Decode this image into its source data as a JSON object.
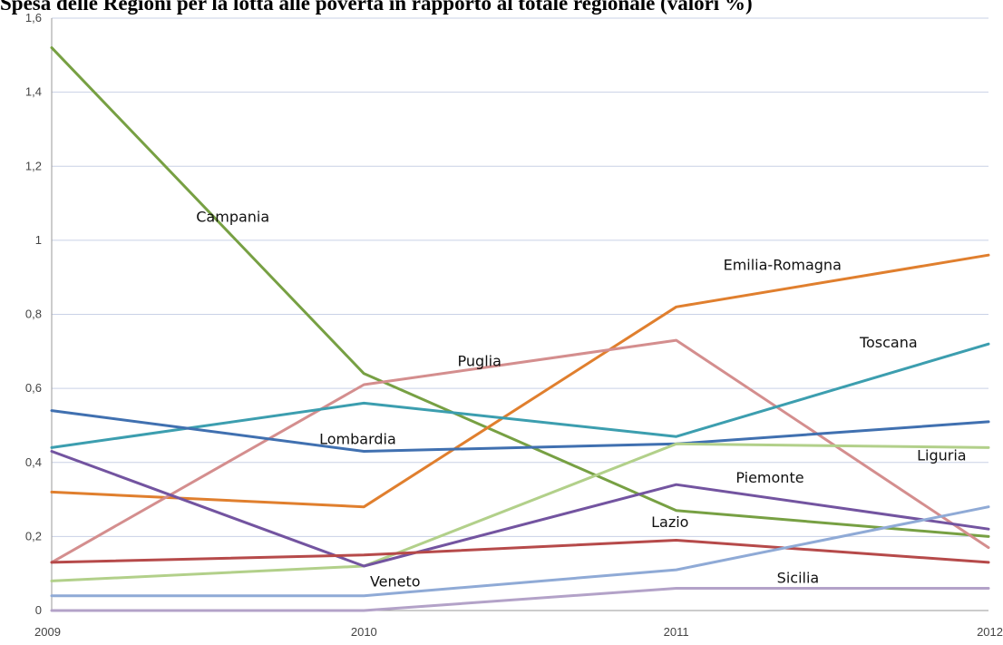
{
  "chart_data": {
    "type": "line",
    "title": "Spesa delle Regioni per la lotta alle povertà in rapporto al totale regionale (valori %)",
    "xlabel": "",
    "ylabel": "",
    "x": [
      "2009",
      "2010",
      "2011",
      "2012"
    ],
    "ylim": [
      0,
      1.6
    ],
    "y_ticks": [
      "0",
      "0,2",
      "0,4",
      "0,6",
      "0,8",
      "1",
      "1,2",
      "1,4",
      "1,6"
    ],
    "grid": true,
    "legend": "labels next to lines",
    "series": [
      {
        "name": "Campania",
        "values": [
          1.52,
          0.64,
          0.27,
          0.2
        ],
        "color": "#77A043"
      },
      {
        "name": "Emilia-Romagna",
        "values": [
          0.32,
          0.28,
          0.82,
          0.96
        ],
        "color": "#E07F2E"
      },
      {
        "name": "Puglia",
        "values": [
          0.13,
          0.61,
          0.73,
          0.17
        ],
        "color": "#D48E8E"
      },
      {
        "name": "Toscana",
        "values": [
          0.44,
          0.56,
          0.47,
          0.72
        ],
        "color": "#3C9EAF"
      },
      {
        "name": "Lombardia",
        "values": [
          0.54,
          0.43,
          0.45,
          0.51
        ],
        "color": "#4070B0"
      },
      {
        "name": "Liguria",
        "values": [
          0.08,
          0.12,
          0.45,
          0.44
        ],
        "color": "#B2D08A"
      },
      {
        "name": "Piemonte",
        "values": [
          0.43,
          0.12,
          0.34,
          0.22
        ],
        "color": "#7354A0"
      },
      {
        "name": "Lazio",
        "values": [
          0.13,
          0.15,
          0.19,
          0.13
        ],
        "color": "#B64A4A"
      },
      {
        "name": "Veneto",
        "values": [
          0.04,
          0.04,
          0.11,
          0.28
        ],
        "color": "#8FAAD6"
      },
      {
        "name": "Sicilia",
        "values": [
          0.0,
          0.0,
          0.06,
          0.06
        ],
        "color": "#B3A2C8"
      }
    ]
  }
}
